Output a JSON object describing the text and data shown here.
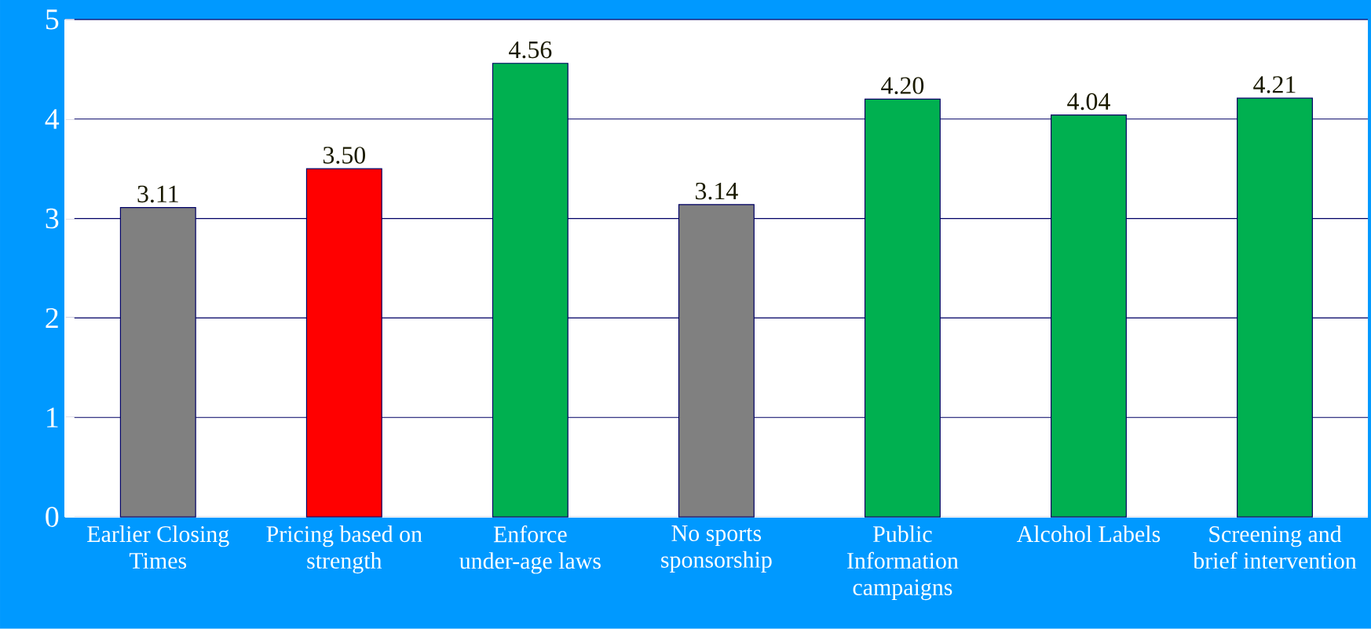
{
  "chart_data": {
    "type": "bar",
    "categories": [
      "Earlier Closing Times",
      "Pricing based on strength",
      "Enforce under-age laws",
      "No sports sponsorship",
      "Public Information campaigns",
      "Alcohol Labels",
      "Screening and brief intervention"
    ],
    "values": [
      3.11,
      3.5,
      4.56,
      3.14,
      4.2,
      4.04,
      4.21
    ],
    "value_labels": [
      "3.11",
      "3.50",
      "4.56",
      "3.14",
      "4.20",
      "4.04",
      "4.21"
    ],
    "colors": [
      "#808080",
      "#ff0000",
      "#00b050",
      "#808080",
      "#00b050",
      "#00b050",
      "#00b050"
    ],
    "ylim": [
      0,
      5
    ],
    "yticks": [
      0,
      1,
      2,
      3,
      4,
      5
    ],
    "grid": "y"
  }
}
